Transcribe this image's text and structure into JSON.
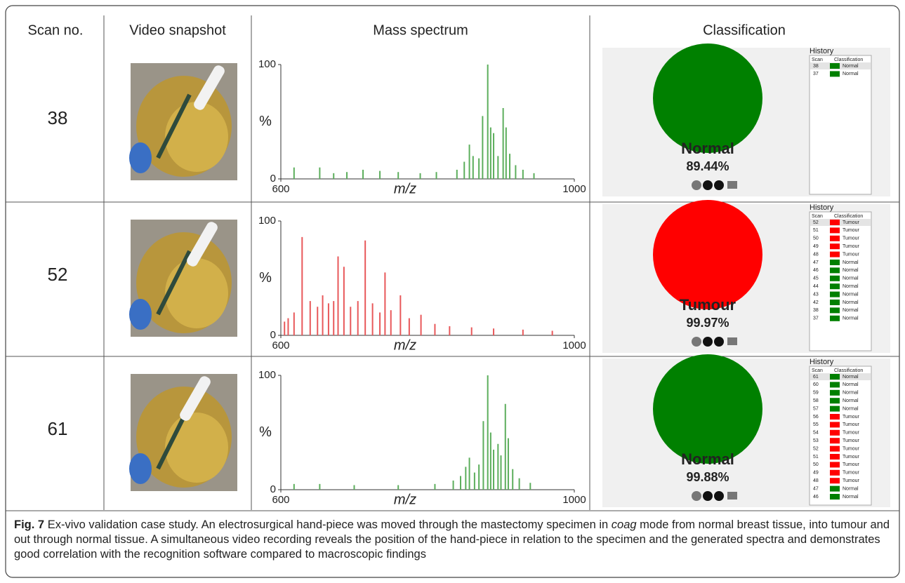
{
  "header": [
    "Scan no.",
    "Video snapshot",
    "Mass spectrum",
    "Classification"
  ],
  "class_colors": {
    "Normal": "#008000",
    "Tumour": "#ff0000"
  },
  "rows": [
    {
      "scan": "38",
      "spectrum": {
        "xlim": [
          600,
          1000
        ],
        "ylim": [
          0,
          100
        ],
        "xticks": [
          600,
          1000
        ],
        "yticks": [
          0,
          100
        ],
        "xlabel": "m/z",
        "ylabel": "%",
        "color": "#5cae5c",
        "x": [
          618,
          653,
          672,
          690,
          712,
          735,
          760,
          790,
          812,
          840,
          850,
          857,
          862,
          870,
          875,
          882,
          886,
          890,
          896,
          903,
          907,
          912,
          920,
          930,
          945
        ],
        "values": [
          10,
          10,
          5,
          6,
          8,
          7,
          6,
          5,
          6,
          8,
          15,
          30,
          20,
          18,
          55,
          100,
          45,
          40,
          20,
          62,
          45,
          22,
          12,
          8,
          5
        ]
      },
      "classification": {
        "label": "Normal",
        "percent": "89.44%",
        "color": "#008000",
        "history_title": "History",
        "history_columns": [
          "Scan",
          "Classification"
        ],
        "history": [
          [
            "38",
            "Normal"
          ],
          [
            "37",
            "Normal"
          ]
        ]
      }
    },
    {
      "scan": "52",
      "spectrum": {
        "xlim": [
          600,
          1000
        ],
        "ylim": [
          0,
          100
        ],
        "xticks": [
          600,
          1000
        ],
        "yticks": [
          0,
          100
        ],
        "xlabel": "m/z",
        "ylabel": "%",
        "color": "#e8585a",
        "x": [
          605,
          610,
          618,
          629,
          640,
          650,
          657,
          665,
          672,
          678,
          686,
          695,
          705,
          715,
          725,
          735,
          742,
          750,
          763,
          775,
          791,
          810,
          830,
          860,
          890,
          930,
          970
        ],
        "values": [
          12,
          15,
          20,
          86,
          30,
          25,
          35,
          28,
          30,
          69,
          60,
          25,
          30,
          83,
          28,
          20,
          55,
          22,
          35,
          15,
          18,
          10,
          8,
          7,
          6,
          5,
          4
        ]
      },
      "classification": {
        "label": "Tumour",
        "percent": "99.97%",
        "color": "#ff0000",
        "history_title": "History",
        "history_columns": [
          "Scan",
          "Classification"
        ],
        "history": [
          [
            "52",
            "Tumour"
          ],
          [
            "51",
            "Tumour"
          ],
          [
            "50",
            "Tumour"
          ],
          [
            "49",
            "Tumour"
          ],
          [
            "48",
            "Tumour"
          ],
          [
            "47",
            "Normal"
          ],
          [
            "46",
            "Normal"
          ],
          [
            "45",
            "Normal"
          ],
          [
            "44",
            "Normal"
          ],
          [
            "43",
            "Normal"
          ],
          [
            "42",
            "Normal"
          ],
          [
            "38",
            "Normal"
          ],
          [
            "37",
            "Normal"
          ]
        ]
      }
    },
    {
      "scan": "61",
      "spectrum": {
        "xlim": [
          600,
          1000
        ],
        "ylim": [
          0,
          100
        ],
        "xticks": [
          600,
          1000
        ],
        "yticks": [
          0,
          100
        ],
        "xlabel": "m/z",
        "ylabel": "%",
        "color": "#5cae5c",
        "x": [
          618,
          653,
          700,
          760,
          810,
          835,
          845,
          852,
          857,
          864,
          870,
          876,
          882,
          886,
          890,
          896,
          900,
          906,
          910,
          916,
          925,
          940
        ],
        "values": [
          5,
          5,
          4,
          4,
          5,
          8,
          12,
          20,
          28,
          15,
          22,
          60,
          100,
          50,
          35,
          40,
          30,
          75,
          45,
          18,
          10,
          6
        ]
      },
      "classification": {
        "label": "Normal",
        "percent": "99.88%",
        "color": "#008000",
        "history_title": "History",
        "history_columns": [
          "Scan",
          "Classification"
        ],
        "history": [
          [
            "61",
            "Normal"
          ],
          [
            "60",
            "Normal"
          ],
          [
            "59",
            "Normal"
          ],
          [
            "58",
            "Normal"
          ],
          [
            "57",
            "Normal"
          ],
          [
            "56",
            "Tumour"
          ],
          [
            "55",
            "Tumour"
          ],
          [
            "54",
            "Tumour"
          ],
          [
            "53",
            "Tumour"
          ],
          [
            "52",
            "Tumour"
          ],
          [
            "51",
            "Tumour"
          ],
          [
            "50",
            "Tumour"
          ],
          [
            "49",
            "Tumour"
          ],
          [
            "48",
            "Tumour"
          ],
          [
            "47",
            "Normal"
          ],
          [
            "46",
            "Normal"
          ]
        ]
      }
    }
  ],
  "caption": {
    "label": "Fig. 7",
    "text_before": "Ex-vivo validation case study. An electrosurgical hand-piece was moved through the mastectomy specimen in ",
    "emphasis": "coag",
    "text_after": " mode from normal breast tissue, into tumour and out through normal tissue. A simultaneous video recording reveals the position of the hand-piece in relation to the specimen and the generated spectra and demonstrates good correlation with the recognition software compared to macroscopic findings"
  }
}
